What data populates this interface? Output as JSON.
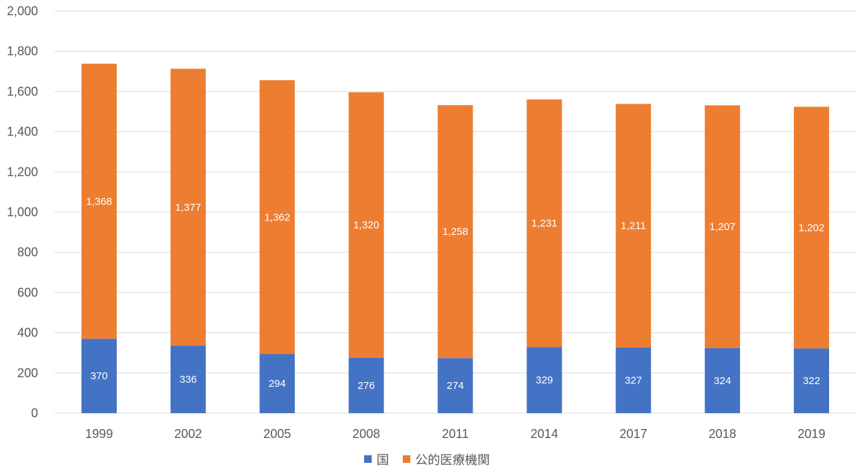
{
  "chart_data": {
    "type": "bar",
    "stacked": true,
    "categories": [
      "1999",
      "2002",
      "2005",
      "2008",
      "2011",
      "2014",
      "2017",
      "2018",
      "2019"
    ],
    "series": [
      {
        "name": "国",
        "color": "#4472c4",
        "values": [
          370,
          336,
          294,
          276,
          274,
          329,
          327,
          324,
          322
        ]
      },
      {
        "name": "公的医療機関",
        "color": "#ed7d31",
        "values": [
          1368,
          1377,
          1362,
          1320,
          1258,
          1231,
          1211,
          1207,
          1202
        ]
      }
    ],
    "ylim": [
      0,
      2000
    ],
    "yticks": [
      0,
      200,
      400,
      600,
      800,
      1000,
      1200,
      1400,
      1600,
      1800,
      2000
    ],
    "ytick_labels": [
      "0",
      "200",
      "400",
      "600",
      "800",
      "1,000",
      "1,200",
      "1,400",
      "1,600",
      "1,800",
      "2,000"
    ],
    "data_labels": [
      [
        "370",
        "336",
        "294",
        "276",
        "274",
        "329",
        "327",
        "324",
        "322"
      ],
      [
        "1,368",
        "1,377",
        "1,362",
        "1,320",
        "1,258",
        "1,231",
        "1,211",
        "1,207",
        "1,202"
      ]
    ],
    "grid": true,
    "legend": "bottom-center",
    "title": "",
    "xlabel": "",
    "ylabel": ""
  }
}
